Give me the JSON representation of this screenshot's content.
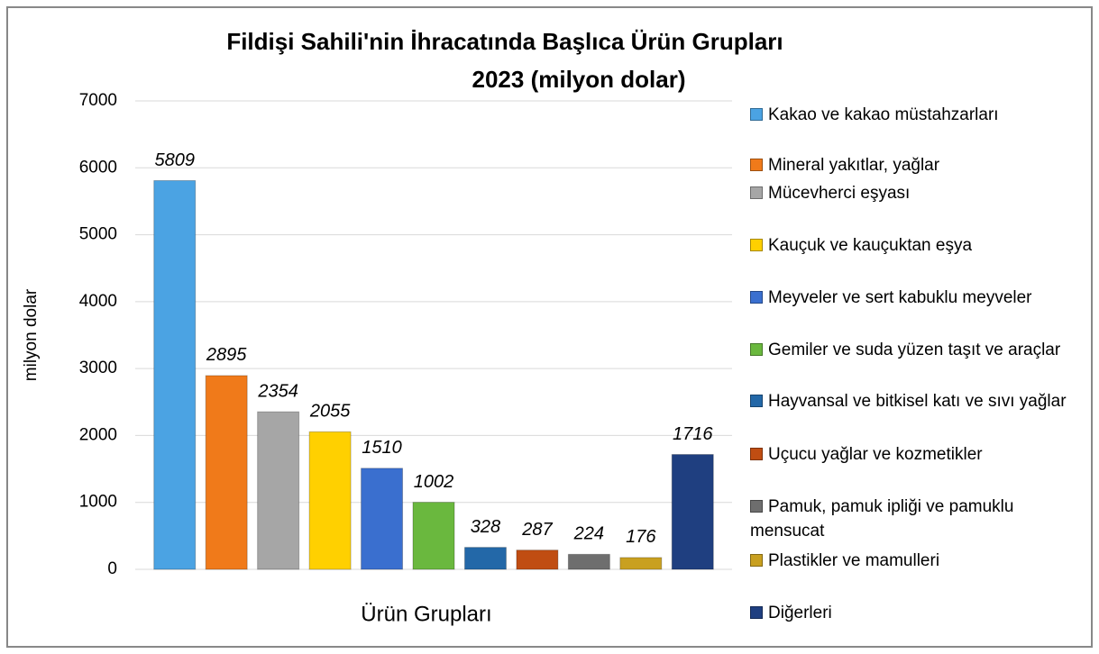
{
  "chart_data": {
    "type": "bar",
    "title": "Fildişi Sahili'nin İhracatında Başlıca Ürün Grupları",
    "subtitle": "2023 (milyon dolar)",
    "x_label": "Ürün Grupları",
    "y_label": "milyon dolar",
    "categories": [
      null
    ],
    "series": [
      {
        "name": "Kakao ve kakao müstahzarları",
        "color": "#4ba3e3",
        "values": [
          5809
        ]
      },
      {
        "name": "Mineral yakıtlar, yağlar",
        "color": "#f07a1a",
        "values": [
          2895
        ]
      },
      {
        "name": "Mücevherci eşyası",
        "color": "#a6a6a6",
        "values": [
          2354
        ]
      },
      {
        "name": "Kauçuk ve kauçuktan eşya",
        "color": "#ffd000",
        "values": [
          2055
        ]
      },
      {
        "name": "Meyveler ve sert kabuklu meyveler",
        "color": "#3a6fcf",
        "values": [
          1510
        ]
      },
      {
        "name": "Gemiler ve suda yüzen taşıt ve araçlar",
        "color": "#6ab83e",
        "values": [
          1002
        ]
      },
      {
        "name": "Hayvansal ve bitkisel katı ve sıvı yağlar",
        "color": "#2368a8",
        "values": [
          328
        ]
      },
      {
        "name": "Uçucu yağlar ve kozmetikler",
        "color": "#c04d12",
        "values": [
          287
        ]
      },
      {
        "name": "Pamuk, pamuk ipliği ve pamuklu mensucat",
        "color": "#6e6e6e",
        "values": [
          224
        ]
      },
      {
        "name": "Plastikler ve mamulleri",
        "color": "#c9a020",
        "values": [
          176
        ]
      },
      {
        "name": "Diğerleri",
        "color": "#1f3f80",
        "values": [
          1716
        ]
      }
    ],
    "ylim": [
      0,
      7000
    ],
    "yticks": [
      0,
      1000,
      2000,
      3000,
      4000,
      5000,
      6000,
      7000
    ],
    "grid": true,
    "legend": "right"
  }
}
